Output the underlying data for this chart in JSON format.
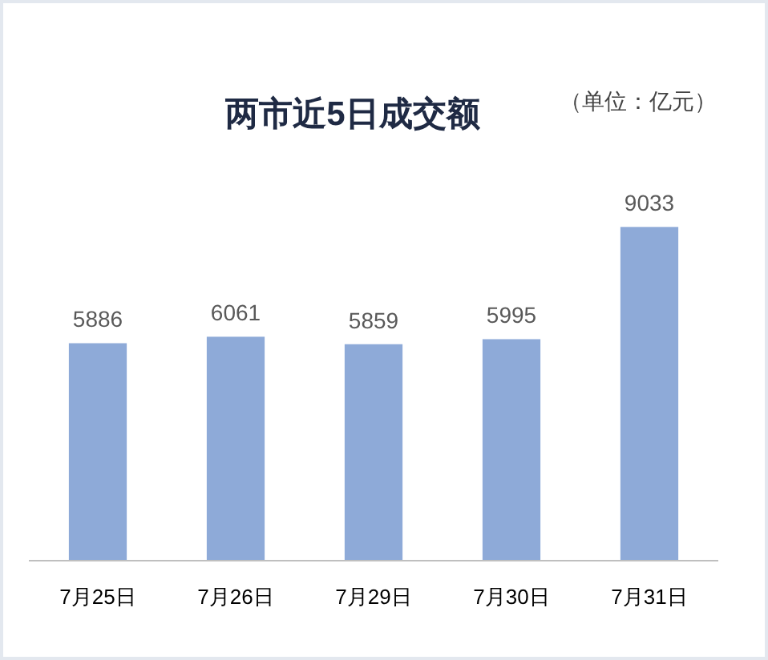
{
  "chart_data": {
    "type": "bar",
    "title": "两市近5日成交额",
    "subtitle": "（单位：亿元）",
    "categories": [
      "7月25日",
      "7月26日",
      "7月29日",
      "7月30日",
      "7月31日"
    ],
    "values": [
      5886,
      6061,
      5859,
      5995,
      9033
    ],
    "color": "#8eaad8",
    "data_labels": true
  }
}
